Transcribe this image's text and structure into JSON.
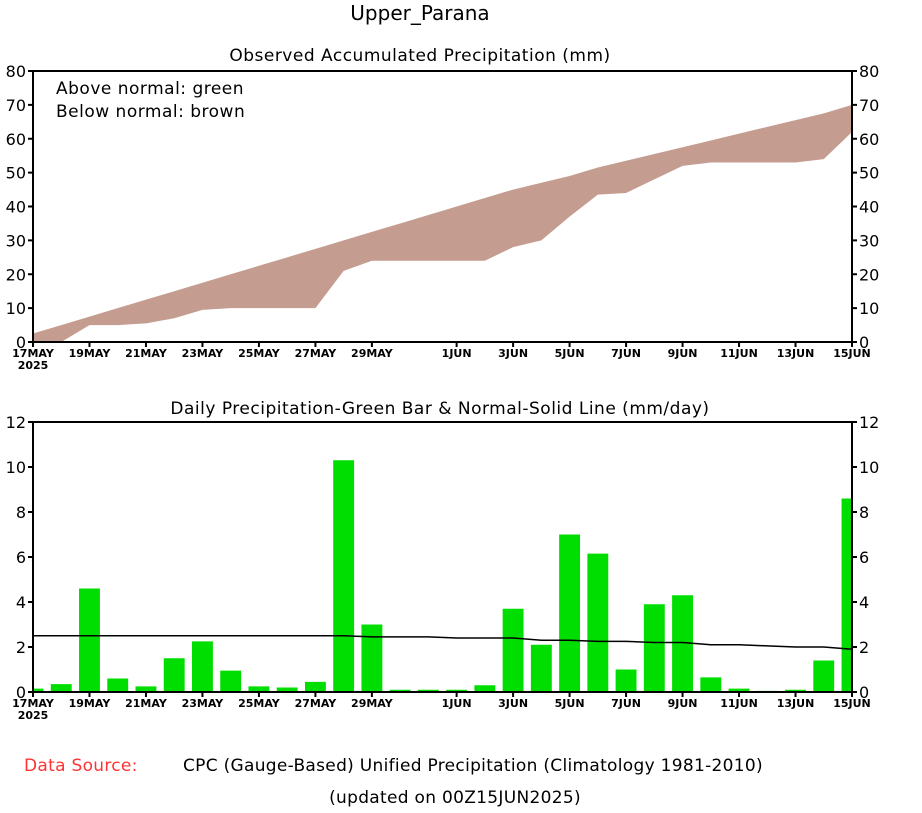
{
  "title": "Upper_Parana",
  "footer": {
    "source_label": "Data Source:",
    "source_text": "CPC (Gauge-Based) Unified Precipitation (Climatology 1981-2010)",
    "updated": "(updated on 00Z15JUN2025)"
  },
  "colors": {
    "below": "#c49c90",
    "bar": "#00dd00",
    "source_label": "#ff3333"
  },
  "chart_data": [
    {
      "type": "area",
      "title": "Observed Accumulated Precipitation (mm)",
      "legend": [
        "Above normal: green",
        "Below normal: brown"
      ],
      "legend_placement": "top-left",
      "ylim": [
        0,
        80
      ],
      "yticks": [
        0,
        10,
        20,
        30,
        40,
        50,
        60,
        70,
        80
      ],
      "dates": [
        "17MAY",
        "18MAY",
        "19MAY",
        "20MAY",
        "21MAY",
        "22MAY",
        "23MAY",
        "24MAY",
        "25MAY",
        "26MAY",
        "27MAY",
        "28MAY",
        "29MAY",
        "30MAY",
        "31MAY",
        "1JUN",
        "2JUN",
        "3JUN",
        "4JUN",
        "5JUN",
        "6JUN",
        "7JUN",
        "8JUN",
        "9JUN",
        "10JUN",
        "11JUN",
        "12JUN",
        "13JUN",
        "14JUN",
        "15JUN"
      ],
      "xtick_labels": [
        {
          "i": 0,
          "label": "17MAY"
        },
        {
          "i": 2,
          "label": "19MAY"
        },
        {
          "i": 4,
          "label": "21MAY"
        },
        {
          "i": 6,
          "label": "23MAY"
        },
        {
          "i": 8,
          "label": "25MAY"
        },
        {
          "i": 10,
          "label": "27MAY"
        },
        {
          "i": 12,
          "label": "29MAY"
        },
        {
          "i": 15,
          "label": "1JUN"
        },
        {
          "i": 17,
          "label": "3JUN"
        },
        {
          "i": 19,
          "label": "5JUN"
        },
        {
          "i": 21,
          "label": "7JUN"
        },
        {
          "i": 23,
          "label": "9JUN"
        },
        {
          "i": 25,
          "label": "11JUN"
        },
        {
          "i": 27,
          "label": "13JUN"
        },
        {
          "i": 29,
          "label": "15JUN"
        }
      ],
      "year_label": "2025",
      "series": [
        {
          "name": "Observed",
          "values": [
            0,
            0,
            5,
            5,
            5.5,
            7,
            9.5,
            10,
            10,
            10,
            10,
            21,
            24,
            24,
            24,
            24,
            24,
            28,
            30,
            37,
            43.5,
            44,
            48,
            52,
            53,
            53,
            53,
            53,
            54,
            62
          ]
        },
        {
          "name": "Normal",
          "values": [
            2.5,
            5,
            7.5,
            10,
            12.5,
            15,
            17.5,
            20,
            22.5,
            25,
            27.5,
            30,
            32.5,
            35,
            37.5,
            40,
            42.5,
            45,
            47,
            49,
            51.5,
            53.5,
            55.5,
            57.5,
            59.5,
            61.5,
            63.5,
            65.5,
            67.5,
            70
          ]
        }
      ]
    },
    {
      "type": "bar",
      "title": "Daily Precipitation-Green Bar & Normal-Solid Line (mm/day)",
      "ylim": [
        0,
        12
      ],
      "yticks": [
        0,
        2,
        4,
        6,
        8,
        10,
        12
      ],
      "series": [
        {
          "name": "Daily",
          "values": [
            0.15,
            0.35,
            4.6,
            0.6,
            0.25,
            1.5,
            2.25,
            0.95,
            0.25,
            0.2,
            0.45,
            10.3,
            3.0,
            0.1,
            0.1,
            0.1,
            0.3,
            3.7,
            2.1,
            7.0,
            6.15,
            1.0,
            3.9,
            4.3,
            0.65,
            0.15,
            0.05,
            0.1,
            1.4,
            8.6
          ]
        },
        {
          "name": "Normal",
          "values": [
            2.5,
            2.5,
            2.5,
            2.5,
            2.5,
            2.5,
            2.5,
            2.5,
            2.5,
            2.5,
            2.5,
            2.5,
            2.45,
            2.45,
            2.45,
            2.4,
            2.4,
            2.4,
            2.3,
            2.3,
            2.25,
            2.25,
            2.2,
            2.2,
            2.1,
            2.1,
            2.05,
            2.0,
            2.0,
            1.9
          ]
        }
      ]
    }
  ]
}
